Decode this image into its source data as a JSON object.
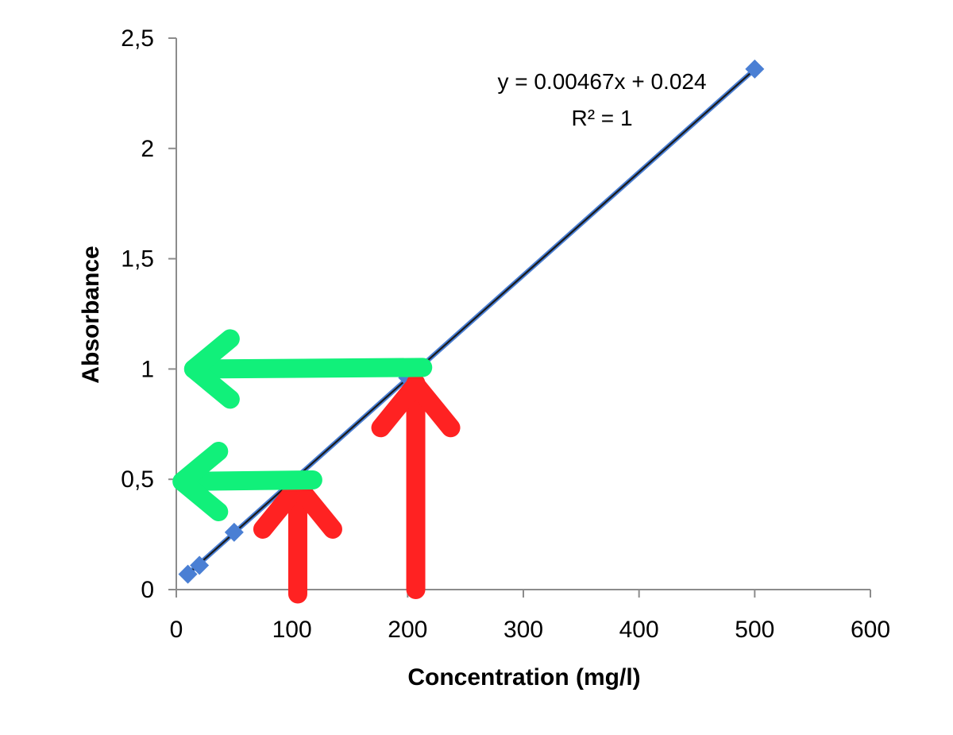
{
  "chart_data": {
    "type": "scatter",
    "title": "",
    "xlabel": "Concentration (mg/l)",
    "ylabel": "Absorbance",
    "xlim": [
      0,
      600
    ],
    "ylim": [
      0,
      2.5
    ],
    "x_ticks": [
      "0",
      "100",
      "200",
      "300",
      "400",
      "500",
      "600"
    ],
    "y_ticks": [
      "0",
      "0,5",
      "1",
      "1,5",
      "2",
      "2,5"
    ],
    "x_tick_values": [
      0,
      100,
      200,
      300,
      400,
      500,
      600
    ],
    "y_tick_values": [
      0,
      0.5,
      1,
      1.5,
      2,
      2.5
    ],
    "grid": false,
    "legend": "none",
    "series": [
      {
        "values_x": [
          10,
          20,
          50,
          100,
          200,
          500
        ],
        "values_y": [
          0.07,
          0.11,
          0.26,
          0.49,
          0.96,
          2.36
        ],
        "color": "#4a7fd4",
        "marker": "diamond"
      }
    ],
    "trendline": {
      "slope": 0.00467,
      "intercept": 0.024,
      "x_range": [
        10,
        500
      ],
      "color": "#1a1a1a",
      "halo_color": "#4a7fd4",
      "equation": "y = 0.00467x + 0.024",
      "r_squared": "R² = 1"
    },
    "annotations": {
      "up_arrows": [
        {
          "x_value": 105,
          "y_from": -0.02,
          "y_to": 0.49,
          "color": "#ff2222"
        },
        {
          "x_value": 207,
          "y_from": 0.0,
          "y_to": 0.95,
          "color": "#ff2222"
        }
      ],
      "left_arrows": [
        {
          "y_value": 0.49,
          "x_from": 118,
          "x_to": 5,
          "color": "#11f07a"
        },
        {
          "y_value": 1.0,
          "x_from": 213,
          "x_to": 15,
          "color": "#11f07a"
        }
      ]
    }
  }
}
